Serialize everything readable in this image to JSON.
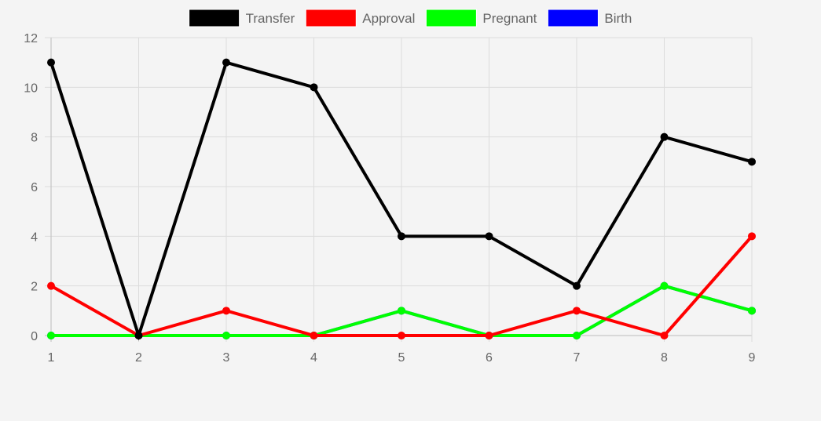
{
  "chart_data": {
    "type": "line",
    "title": "",
    "xlabel": "",
    "ylabel": "",
    "x": [
      1,
      2,
      3,
      4,
      5,
      6,
      7,
      8,
      9
    ],
    "ylim": [
      0,
      12
    ],
    "yticks": [
      0,
      2,
      4,
      6,
      8,
      10,
      12
    ],
    "grid": true,
    "legend_position": "top-center",
    "series": [
      {
        "name": "Transfer",
        "color": "#000000",
        "values": [
          11,
          0,
          11,
          10,
          4,
          4,
          2,
          8,
          7
        ]
      },
      {
        "name": "Approval",
        "color": "#ff0000",
        "values": [
          2,
          0,
          1,
          0,
          0,
          0,
          1,
          0,
          4
        ]
      },
      {
        "name": "Pregnant",
        "color": "#00ff00",
        "values": [
          0,
          0,
          0,
          0,
          1,
          0,
          0,
          2,
          1
        ]
      },
      {
        "name": "Birth",
        "color": "#0000ff",
        "values": [
          0,
          0,
          0,
          0,
          1,
          0,
          0,
          2,
          1
        ]
      }
    ]
  }
}
